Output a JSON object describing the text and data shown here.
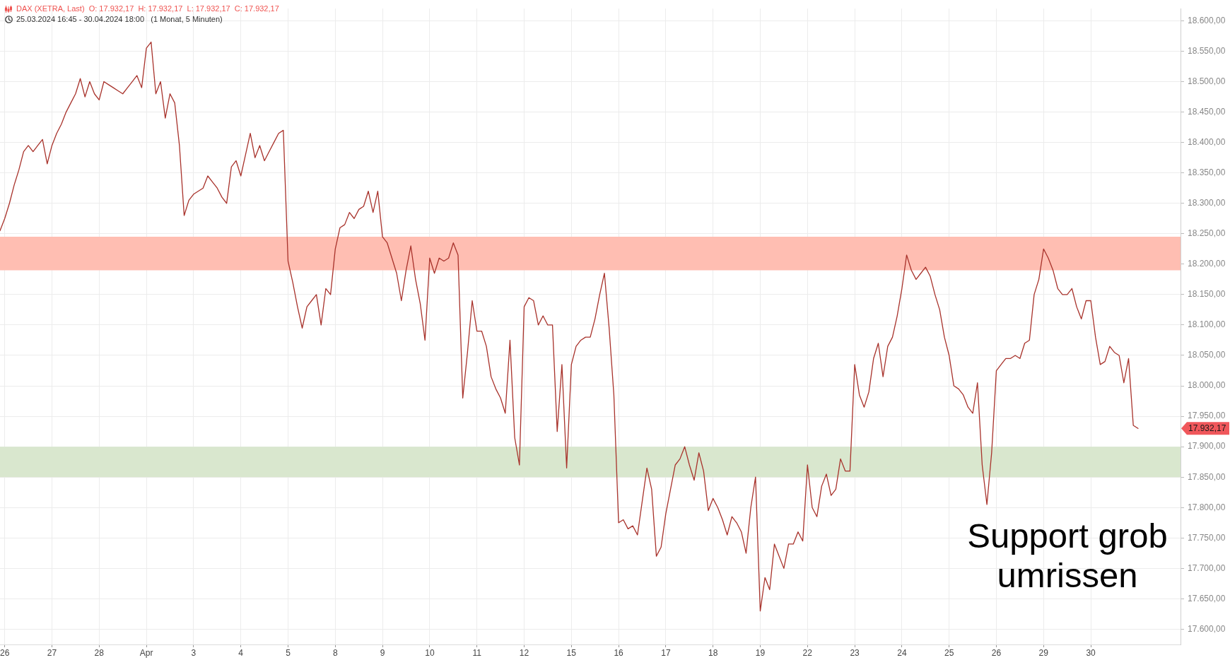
{
  "chart_data": {
    "type": "line",
    "title": "DAX (XETRA, Last)  O: 17.932,17  H: 17.932,17  L: 17.932,17  C: 17.932,17",
    "subtitle": "25.03.2024 16:45 - 30.04.2024 18:00   (1 Monat, 5 Minuten)",
    "annotations": [
      "Support grob umrissen",
      "17.932,17"
    ],
    "color": "#a8322b",
    "marker": "none",
    "line_style": "solid",
    "grid": true,
    "categories": [
      null,
      "26",
      null,
      null,
      null,
      null,
      null,
      null,
      null,
      null,
      null,
      "27",
      null,
      null,
      null,
      null,
      null,
      null,
      null,
      null,
      null,
      "28",
      null,
      null,
      null,
      null,
      null,
      null,
      null,
      null,
      null,
      "Apr",
      null,
      null,
      null,
      null,
      null,
      null,
      null,
      null,
      null,
      "3",
      null,
      null,
      null,
      null,
      null,
      null,
      null,
      null,
      null,
      "4",
      null,
      null,
      null,
      null,
      null,
      null,
      null,
      null,
      null,
      "5",
      null,
      null,
      null,
      null,
      null,
      null,
      null,
      null,
      null,
      "8",
      null,
      null,
      null,
      null,
      null,
      null,
      null,
      null,
      null,
      "9",
      null,
      null,
      null,
      null,
      null,
      null,
      null,
      null,
      null,
      "10",
      null,
      null,
      null,
      null,
      null,
      null,
      null,
      null,
      null,
      "11",
      null,
      null,
      null,
      null,
      null,
      null,
      null,
      null,
      null,
      "12",
      null,
      null,
      null,
      null,
      null,
      null,
      null,
      null,
      null,
      "15",
      null,
      null,
      null,
      null,
      null,
      null,
      null,
      null,
      null,
      "16",
      null,
      null,
      null,
      null,
      null,
      null,
      null,
      null,
      null,
      "17",
      null,
      null,
      null,
      null,
      null,
      null,
      null,
      null,
      null,
      "18",
      null,
      null,
      null,
      null,
      null,
      null,
      null,
      null,
      null,
      "19",
      null,
      null,
      null,
      null,
      null,
      null,
      null,
      null,
      null,
      "22",
      null,
      null,
      null,
      null,
      null,
      null,
      null,
      null,
      null,
      "23",
      null,
      null,
      null,
      null,
      null,
      null,
      null,
      null,
      null,
      "24",
      null,
      null,
      null,
      null,
      null,
      null,
      null,
      null,
      null,
      "25",
      null,
      null,
      null,
      null,
      null,
      null,
      null,
      null,
      null,
      "26",
      null,
      null,
      null,
      null,
      null,
      null,
      null,
      null,
      null,
      "29",
      null,
      null,
      null,
      null,
      null,
      null,
      null,
      null,
      null,
      "30",
      null,
      null,
      null,
      null,
      null,
      null,
      null,
      null,
      null,
      null,
      null,
      null,
      null,
      null,
      null,
      null,
      null,
      null,
      null
    ],
    "values": [
      18255,
      18275,
      18300,
      18330,
      18355,
      18385,
      18395,
      18385,
      18395,
      18405,
      18365,
      18395,
      18415,
      18430,
      18450,
      18465,
      18480,
      18505,
      18475,
      18500,
      18480,
      18470,
      18500,
      18495,
      18490,
      18485,
      18480,
      18490,
      18500,
      18510,
      18490,
      18555,
      18565,
      18480,
      18500,
      18440,
      18480,
      18465,
      18395,
      18280,
      18305,
      18315,
      18320,
      18325,
      18345,
      18335,
      18325,
      18310,
      18300,
      18360,
      18370,
      18345,
      18380,
      18415,
      18375,
      18395,
      18370,
      18385,
      18400,
      18415,
      18420,
      18205,
      18170,
      18130,
      18095,
      18130,
      18140,
      18150,
      18100,
      18160,
      18150,
      18225,
      18260,
      18265,
      18285,
      18275,
      18290,
      18295,
      18320,
      18285,
      18320,
      18245,
      18235,
      18210,
      18185,
      18140,
      18190,
      18230,
      18175,
      18135,
      18075,
      18210,
      18185,
      18210,
      18205,
      18210,
      18235,
      18215,
      17980,
      18055,
      18140,
      18090,
      18090,
      18065,
      18015,
      17995,
      17980,
      17955,
      18075,
      17915,
      17870,
      18130,
      18145,
      18140,
      18100,
      18115,
      18100,
      18100,
      17925,
      18035,
      17865,
      18035,
      18065,
      18075,
      18080,
      18080,
      18110,
      18150,
      18185,
      18095,
      17985,
      17775,
      17780,
      17765,
      17770,
      17755,
      17810,
      17865,
      17830,
      17720,
      17735,
      17790,
      17830,
      17870,
      17880,
      17900,
      17870,
      17845,
      17890,
      17860,
      17795,
      17815,
      17800,
      17780,
      17755,
      17785,
      17775,
      17760,
      17725,
      17800,
      17850,
      17630,
      17685,
      17665,
      17740,
      17720,
      17700,
      17740,
      17740,
      17760,
      17745,
      17870,
      17800,
      17785,
      17835,
      17855,
      17820,
      17830,
      17880,
      17860,
      17860,
      18035,
      17985,
      17965,
      17990,
      18045,
      18070,
      18015,
      18065,
      18080,
      18115,
      18160,
      18215,
      18190,
      18175,
      18185,
      18195,
      18180,
      18150,
      18125,
      18080,
      18050,
      18000,
      17995,
      17985,
      17965,
      17955,
      18005,
      17870,
      17805,
      17890,
      18025,
      18035,
      18045,
      18045,
      18050,
      18045,
      18070,
      18075,
      18150,
      18175,
      18225,
      18210,
      18190,
      18160,
      18150,
      18150,
      18160,
      18130,
      18110,
      18140,
      18140,
      18080,
      18035,
      18040,
      18065,
      18055,
      18050,
      18005,
      18045,
      17935,
      17930,
      null,
      null,
      null,
      null,
      null,
      null,
      null,
      null,
      null
    ],
    "ylim": [
      17575,
      18620
    ],
    "yticks": [
      {
        "value": 17600,
        "label": "17.600,00"
      },
      {
        "value": 17650,
        "label": "17.650,00"
      },
      {
        "value": 17700,
        "label": "17.700,00"
      },
      {
        "value": 17750,
        "label": "17.750,00"
      },
      {
        "value": 17800,
        "label": "17.800,00"
      },
      {
        "value": 17850,
        "label": "17.850,00"
      },
      {
        "value": 17900,
        "label": "17.900,00"
      },
      {
        "value": 17950,
        "label": "17.950,00"
      },
      {
        "value": 18000,
        "label": "18.000,00"
      },
      {
        "value": 18050,
        "label": "18.050,00"
      },
      {
        "value": 18100,
        "label": "18.100,00"
      },
      {
        "value": 18150,
        "label": "18.150,00"
      },
      {
        "value": 18200,
        "label": "18.200,00"
      },
      {
        "value": 18250,
        "label": "18.250,00"
      },
      {
        "value": 18300,
        "label": "18.300,00"
      },
      {
        "value": 18350,
        "label": "18.350,00"
      },
      {
        "value": 18400,
        "label": "18.400,00"
      },
      {
        "value": 18450,
        "label": "18.450,00"
      },
      {
        "value": 18500,
        "label": "18.500,00"
      },
      {
        "value": 18550,
        "label": "18.550,00"
      },
      {
        "value": 18600,
        "label": "18.600,00"
      }
    ],
    "bands": [
      {
        "axis": "y",
        "from": 18190,
        "to": 18245,
        "color": "#ffbeb2"
      },
      {
        "axis": "y",
        "from": 17850,
        "to": 17900,
        "color": "#d9e7ce"
      }
    ]
  }
}
